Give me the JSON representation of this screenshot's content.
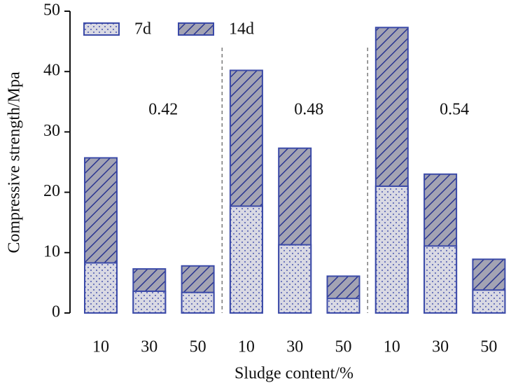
{
  "chart_data": {
    "type": "bar",
    "overlap": true,
    "xlabel": "Sludge content/%",
    "ylabel": "Compressive strength/Mpa",
    "categories": [
      "10",
      "30",
      "50",
      "10",
      "30",
      "50",
      "10",
      "30",
      "50"
    ],
    "groups": [
      "0.42",
      "0.48",
      "0.54"
    ],
    "series": [
      {
        "name": "7d",
        "color": "#d9d9e3",
        "values": [
          8.3,
          3.6,
          3.4,
          17.7,
          11.3,
          2.4,
          21.0,
          11.1,
          3.8
        ]
      },
      {
        "name": "14d",
        "color": "#a3a3b3",
        "values": [
          25.7,
          7.3,
          7.8,
          40.2,
          27.3,
          6.1,
          47.3,
          23.0,
          8.9
        ]
      }
    ],
    "edge_color": "#3b4aa8",
    "ylim": [
      0,
      50
    ],
    "yticks": [
      0,
      10,
      20,
      30,
      40,
      50
    ]
  }
}
